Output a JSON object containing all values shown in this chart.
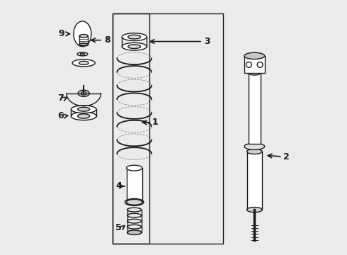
{
  "bg_color": "#ebebeb",
  "line_color": "#1a1a1a",
  "figsize": [
    4.9,
    3.6
  ],
  "dpi": 100
}
